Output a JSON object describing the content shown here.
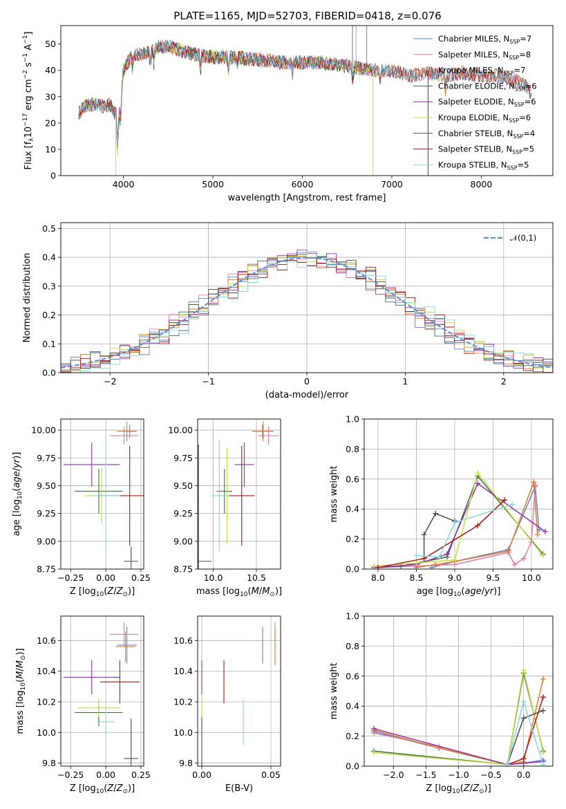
{
  "figure": {
    "title": "PLATE=1165, MJD=52703, FIBERID=0418, z=0.076"
  },
  "colors": {
    "Chabrier MILES": "#5b83d6",
    "Salpeter MILES": "#e87aa8",
    "Kroupa MILES": "#e07b24",
    "Chabrier ELODIE": "#3e6e44",
    "Salpeter ELODIE": "#8e2fb8",
    "Kroupa ELODIE": "#c2e03a",
    "Chabrier STELIB": "#4a4a4a",
    "Salpeter STELIB": "#b51414",
    "Kroupa STELIB": "#82d8e2"
  },
  "legend_html": [
    "Chabrier MILES, N<tspan font-size='8' dy='3'>SSP</tspan><tspan dy='-3'>=7</tspan>",
    "Salpeter MILES, N<tspan font-size='8' dy='3'>SSP</tspan><tspan dy='-3'>=8</tspan>",
    "Kroupa MILES, N<tspan font-size='8' dy='3'>SSP</tspan><tspan dy='-3'>=7</tspan>",
    "Chabrier ELODIE, N<tspan font-size='8' dy='3'>SSP</tspan><tspan dy='-3'>=6</tspan>",
    "Salpeter ELODIE, N<tspan font-size='8' dy='3'>SSP</tspan><tspan dy='-3'>=6</tspan>",
    "Kroupa ELODIE, N<tspan font-size='8' dy='3'>SSP</tspan><tspan dy='-3'>=6</tspan>",
    "Chabrier STELIB, N<tspan font-size='8' dy='3'>SSP</tspan><tspan dy='-3'>=4</tspan>",
    "Salpeter STELIB, N<tspan font-size='8' dy='3'>SSP</tspan><tspan dy='-3'>=5</tspan>",
    "Kroupa STELIB, N<tspan font-size='8' dy='3'>SSP</tspan><tspan dy='-3'>=5</tspan>"
  ],
  "chart_data": [
    {
      "type": "line",
      "panel": "spectrum",
      "xlabel": "wavelength [Angstrom, rest frame]",
      "ylabel": "Flux [f_λ 10^-17 erg cm^-2 s^-1 A^-1]",
      "xlim": [
        3300,
        8800
      ],
      "ylim": [
        0,
        57
      ],
      "xticks": [
        4000,
        5000,
        6000,
        7000,
        8000
      ],
      "yticks": [
        0,
        10,
        20,
        30,
        40,
        50
      ],
      "legend_position": "top-right",
      "series": [
        {
          "name": "Chabrier MILES, N_SSP=7"
        },
        {
          "name": "Salpeter MILES, N_SSP=8"
        },
        {
          "name": "Kroupa MILES, N_SSP=7"
        },
        {
          "name": "Chabrier ELODIE, N_SSP=6"
        },
        {
          "name": "Salpeter ELODIE, N_SSP=6"
        },
        {
          "name": "Kroupa ELODIE, N_SSP=6"
        },
        {
          "name": "Chabrier STELIB, N_SSP=4"
        },
        {
          "name": "Salpeter STELIB, N_SSP=5"
        },
        {
          "name": "Kroupa STELIB, N_SSP=5"
        }
      ],
      "continuum": {
        "x": [
          3500,
          3600,
          3700,
          3800,
          3850,
          3900,
          3950,
          4000,
          4100,
          4200,
          4300,
          4400,
          4500,
          4600,
          4800,
          5000,
          5200,
          5500,
          5800,
          6000,
          6200,
          6400,
          6600,
          6800,
          7000,
          7200,
          7400,
          7600,
          7800,
          8000,
          8200,
          8400,
          8500,
          8550
        ],
        "y": [
          24,
          27,
          27,
          26,
          27,
          24,
          22,
          40,
          46,
          46,
          47,
          49,
          49,
          48,
          46,
          45,
          45,
          44,
          43,
          43,
          43,
          42,
          41,
          40,
          40,
          38,
          39,
          38,
          39,
          38,
          38,
          36,
          34,
          31
        ]
      }
    },
    {
      "type": "line",
      "panel": "residual-distribution",
      "xlabel": "(data-model)/error",
      "ylabel": "Normed distribution",
      "xlim": [
        -2.5,
        2.5
      ],
      "ylim": [
        0,
        0.52
      ],
      "xticks": [
        -2,
        -1,
        0,
        1,
        2
      ],
      "yticks": [
        0.0,
        0.1,
        0.2,
        0.3,
        0.4,
        0.5
      ],
      "grid": true,
      "legend_position": "top-right",
      "series": [
        {
          "name": "N(0,1)"
        }
      ],
      "note": "nine step histograms (one per model) plus a dashed normal curve"
    },
    {
      "type": "scatter",
      "panel": "age-vs-Z",
      "xlabel": "Z [log10(Z/Z⊙)]",
      "ylabel": "age [log10(age/yr)]",
      "xlim": [
        -0.32,
        0.27
      ],
      "ylim": [
        8.75,
        10.1
      ],
      "xticks": [
        -0.25,
        0.0,
        0.25
      ],
      "yticks": [
        8.75,
        9.0,
        9.25,
        9.5,
        9.75,
        10.0
      ],
      "grid": true,
      "points": [
        {
          "model": "Chabrier MILES",
          "x": 0.17,
          "y": 9.99,
          "xerr": 0.05,
          "yerr": 0.06
        },
        {
          "model": "Salpeter MILES",
          "x": 0.13,
          "y": 9.95,
          "xerr": 0.1,
          "yerr": 0.08
        },
        {
          "model": "Kroupa MILES",
          "x": 0.15,
          "y": 9.99,
          "xerr": 0.07,
          "yerr": 0.09
        },
        {
          "model": "Chabrier ELODIE",
          "x": -0.05,
          "y": 9.45,
          "xerr": 0.17,
          "yerr": 0.2
        },
        {
          "model": "Salpeter ELODIE",
          "x": -0.1,
          "y": 9.69,
          "xerr": 0.2,
          "yerr": 0.2
        },
        {
          "model": "Kroupa ELODIE",
          "x": -0.03,
          "y": 9.41,
          "xerr": 0.12,
          "yerr": 0.25
        },
        {
          "model": "Chabrier STELIB",
          "x": 0.18,
          "y": 8.82,
          "xerr": 0.05,
          "yerr": 0.13
        },
        {
          "model": "Salpeter STELIB",
          "x": 0.17,
          "y": 9.41,
          "xerr": 0.22,
          "yerr": 0.45
        },
        {
          "model": "Kroupa STELIB",
          "x": 0.0,
          "y": 9.41,
          "xerr": 0.1,
          "yerr": 0.5
        }
      ]
    },
    {
      "type": "scatter",
      "panel": "age-vs-mass",
      "xlabel": "mass [log10(M/M⊙)]",
      "ylabel": "",
      "xlim": [
        9.82,
        10.78
      ],
      "ylim": [
        8.75,
        10.1
      ],
      "xticks": [
        10.0,
        10.5
      ],
      "yticks": [
        8.75,
        9.0,
        9.25,
        9.5,
        9.75,
        10.0
      ],
      "grid": true,
      "points": [
        {
          "model": "Chabrier MILES",
          "x": 10.57,
          "y": 9.99,
          "xerr": 0.12,
          "yerr": 0.06
        },
        {
          "model": "Salpeter MILES",
          "x": 10.64,
          "y": 9.95,
          "xerr": 0.12,
          "yerr": 0.08
        },
        {
          "model": "Kroupa MILES",
          "x": 10.58,
          "y": 9.99,
          "xerr": 0.12,
          "yerr": 0.09
        },
        {
          "model": "Chabrier ELODIE",
          "x": 10.13,
          "y": 9.45,
          "xerr": 0.09,
          "yerr": 0.2
        },
        {
          "model": "Salpeter ELODIE",
          "x": 10.36,
          "y": 9.69,
          "xerr": 0.11,
          "yerr": 0.2
        },
        {
          "model": "Kroupa ELODIE",
          "x": 10.16,
          "y": 9.41,
          "xerr": 0.06,
          "yerr": 0.43
        },
        {
          "model": "Chabrier STELIB",
          "x": 9.83,
          "y": 8.82,
          "xerr": 0.15,
          "yerr": 1.05
        },
        {
          "model": "Salpeter STELIB",
          "x": 10.33,
          "y": 9.41,
          "xerr": 0.15,
          "yerr": 0.45
        },
        {
          "model": "Kroupa STELIB",
          "x": 10.07,
          "y": 9.41,
          "xerr": 0.09,
          "yerr": 0.5
        }
      ]
    },
    {
      "type": "line",
      "panel": "mass-weight-vs-age",
      "xlabel": "age [log10(age/yr)]",
      "ylabel": "mass weight",
      "xlim": [
        7.82,
        10.28
      ],
      "ylim": [
        0,
        1
      ],
      "xticks": [
        8.0,
        8.5,
        9.0,
        9.5,
        10.0
      ],
      "yticks": [
        0.0,
        0.2,
        0.4,
        0.6,
        0.8,
        1.0
      ],
      "grid": true,
      "series": [
        {
          "model": "Chabrier MILES",
          "x": [
            8.7,
            9.0,
            9.7,
            10.05,
            10.1
          ],
          "y": [
            0.01,
            0.05,
            0.13,
            0.55,
            0.26
          ]
        },
        {
          "model": "Salpeter MILES",
          "x": [
            8.0,
            8.5,
            9.0,
            9.7,
            9.78,
            9.9,
            10.0,
            10.05
          ],
          "y": [
            0.01,
            0.02,
            0.03,
            0.11,
            0.03,
            0.07,
            0.18,
            0.56
          ]
        },
        {
          "model": "Kroupa MILES",
          "x": [
            8.5,
            8.75,
            9.0,
            9.7,
            10.03,
            10.08
          ],
          "y": [
            0.01,
            0.03,
            0.05,
            0.12,
            0.58,
            0.23
          ]
        },
        {
          "model": "Chabrier ELODIE",
          "x": [
            7.95,
            8.3,
            8.9,
            9.3,
            10.15
          ],
          "y": [
            0.01,
            0.02,
            0.08,
            0.62,
            0.1
          ]
        },
        {
          "model": "Salpeter ELODIE",
          "x": [
            7.95,
            8.5,
            8.9,
            9.3,
            10.18
          ],
          "y": [
            0.01,
            0.03,
            0.1,
            0.57,
            0.25
          ]
        },
        {
          "model": "Kroupa ELODIE",
          "x": [
            7.95,
            8.5,
            9.0,
            9.3,
            10.15
          ],
          "y": [
            0.02,
            0.04,
            0.06,
            0.64,
            0.09
          ]
        },
        {
          "model": "Chabrier STELIB",
          "x": [
            8.6,
            8.6,
            8.75,
            9.0
          ],
          "y": [
            0.07,
            0.23,
            0.37,
            0.32
          ]
        },
        {
          "model": "Salpeter STELIB",
          "x": [
            8.0,
            8.6,
            9.3,
            9.65
          ],
          "y": [
            0.01,
            0.07,
            0.29,
            0.46
          ]
        },
        {
          "model": "Kroupa STELIB",
          "x": [
            8.5,
            8.8,
            9.0,
            9.75
          ],
          "y": [
            0.09,
            0.08,
            0.31,
            0.43
          ]
        }
      ]
    },
    {
      "type": "scatter",
      "panel": "mass-vs-Z",
      "xlabel": "Z [log10(Z/Z⊙)]",
      "ylabel": "mass [log10(M/M⊙)]",
      "xlim": [
        -0.32,
        0.27
      ],
      "ylim": [
        9.78,
        10.76
      ],
      "xticks": [
        -0.25,
        0.0,
        0.25
      ],
      "yticks": [
        9.8,
        10.0,
        10.2,
        10.4,
        10.6
      ],
      "grid": true,
      "points": [
        {
          "model": "Chabrier MILES",
          "x": 0.15,
          "y": 10.57,
          "xerr": 0.07,
          "yerr": 0.12
        },
        {
          "model": "Salpeter MILES",
          "x": 0.13,
          "y": 10.64,
          "xerr": 0.1,
          "yerr": 0.08
        },
        {
          "model": "Kroupa MILES",
          "x": 0.14,
          "y": 10.56,
          "xerr": 0.07,
          "yerr": 0.1
        },
        {
          "model": "Chabrier ELODIE",
          "x": -0.05,
          "y": 10.13,
          "xerr": 0.17,
          "yerr": 0.09
        },
        {
          "model": "Salpeter ELODIE",
          "x": -0.1,
          "y": 10.36,
          "xerr": 0.2,
          "yerr": 0.11
        },
        {
          "model": "Kroupa ELODIE",
          "x": -0.05,
          "y": 10.16,
          "xerr": 0.15,
          "yerr": 0.06
        },
        {
          "model": "Chabrier STELIB",
          "x": 0.18,
          "y": 9.83,
          "xerr": 0.05,
          "yerr": 0.26
        },
        {
          "model": "Salpeter STELIB",
          "x": 0.1,
          "y": 10.33,
          "xerr": 0.14,
          "yerr": 0.14
        },
        {
          "model": "Kroupa STELIB",
          "x": 0.0,
          "y": 10.07,
          "xerr": 0.06,
          "yerr": 0.09
        }
      ]
    },
    {
      "type": "scatter",
      "panel": "mass-vs-ebv",
      "xlabel": "E(B-V)",
      "ylabel": "",
      "xlim": [
        -0.003,
        0.057
      ],
      "ylim": [
        9.78,
        10.76
      ],
      "xticks": [
        0.0,
        0.05
      ],
      "yticks": [
        9.8,
        10.0,
        10.2,
        10.4,
        10.6
      ],
      "grid": true,
      "points": [
        {
          "model": "Chabrier MILES",
          "x": 0.044,
          "y": 10.57,
          "yerr": 0.12
        },
        {
          "model": "Salpeter MILES",
          "x": 0.053,
          "y": 10.64,
          "yerr": 0.08
        },
        {
          "model": "Kroupa MILES",
          "x": 0.053,
          "y": 10.56,
          "yerr": 0.12
        },
        {
          "model": "Chabrier ELODIE",
          "x": 0.0,
          "y": 10.13,
          "yerr": 0.09
        },
        {
          "model": "Salpeter ELODIE",
          "x": 0.0,
          "y": 10.36,
          "yerr": 0.11
        },
        {
          "model": "Kroupa ELODIE",
          "x": 0.0,
          "y": 10.16,
          "yerr": 0.06
        },
        {
          "model": "Chabrier STELIB",
          "x": 0.0,
          "y": 9.83,
          "yerr": 0.26
        },
        {
          "model": "Salpeter STELIB",
          "x": 0.016,
          "y": 10.33,
          "yerr": 0.14
        },
        {
          "model": "Kroupa STELIB",
          "x": 0.03,
          "y": 10.07,
          "yerr": 0.15
        }
      ]
    },
    {
      "type": "line",
      "panel": "mass-weight-vs-Z",
      "xlabel": "Z [log10(Z/Z⊙)]",
      "ylabel": "mass weight",
      "xlim": [
        -2.45,
        0.45
      ],
      "ylim": [
        0,
        1
      ],
      "xticks": [
        -2.0,
        -1.5,
        -1.0,
        -0.5,
        0.0
      ],
      "yticks": [
        0.0,
        0.2,
        0.4,
        0.6,
        0.8,
        1.0
      ],
      "grid": true,
      "series": [
        {
          "model": "Chabrier MILES",
          "x": [
            -2.3,
            -1.3,
            -0.25,
            0.0,
            0.3
          ],
          "y": [
            0.23,
            0.12,
            0.01,
            0.02,
            0.04
          ]
        },
        {
          "model": "Salpeter MILES",
          "x": [
            -2.3,
            -1.3,
            -0.25,
            0.0,
            0.3
          ],
          "y": [
            0.22,
            0.13,
            0.01,
            0.02,
            0.03
          ]
        },
        {
          "model": "Kroupa MILES",
          "x": [
            -2.3,
            -1.3,
            -0.25,
            0.0,
            0.3
          ],
          "y": [
            0.24,
            0.12,
            0.01,
            0.03,
            0.58
          ]
        },
        {
          "model": "Chabrier ELODIE",
          "x": [
            -2.3,
            -0.25,
            0.0,
            0.3
          ],
          "y": [
            0.1,
            0.01,
            0.62,
            0.1
          ]
        },
        {
          "model": "Salpeter ELODIE",
          "x": [
            -2.3,
            -0.25,
            0.0,
            0.3
          ],
          "y": [
            0.25,
            0.01,
            0.02,
            0.03
          ]
        },
        {
          "model": "Kroupa ELODIE",
          "x": [
            -2.3,
            -0.25,
            0.0,
            0.3
          ],
          "y": [
            0.09,
            0.01,
            0.64,
            0.09
          ]
        },
        {
          "model": "Chabrier STELIB",
          "x": [
            -0.25,
            0.0,
            0.3
          ],
          "y": [
            0.01,
            0.32,
            0.37
          ]
        },
        {
          "model": "Salpeter STELIB",
          "x": [
            -0.25,
            0.0,
            0.3
          ],
          "y": [
            0.01,
            0.05,
            0.46
          ]
        },
        {
          "model": "Kroupa STELIB",
          "x": [
            -0.25,
            0.0,
            0.3
          ],
          "y": [
            0.01,
            0.43,
            0.01
          ]
        }
      ]
    }
  ]
}
